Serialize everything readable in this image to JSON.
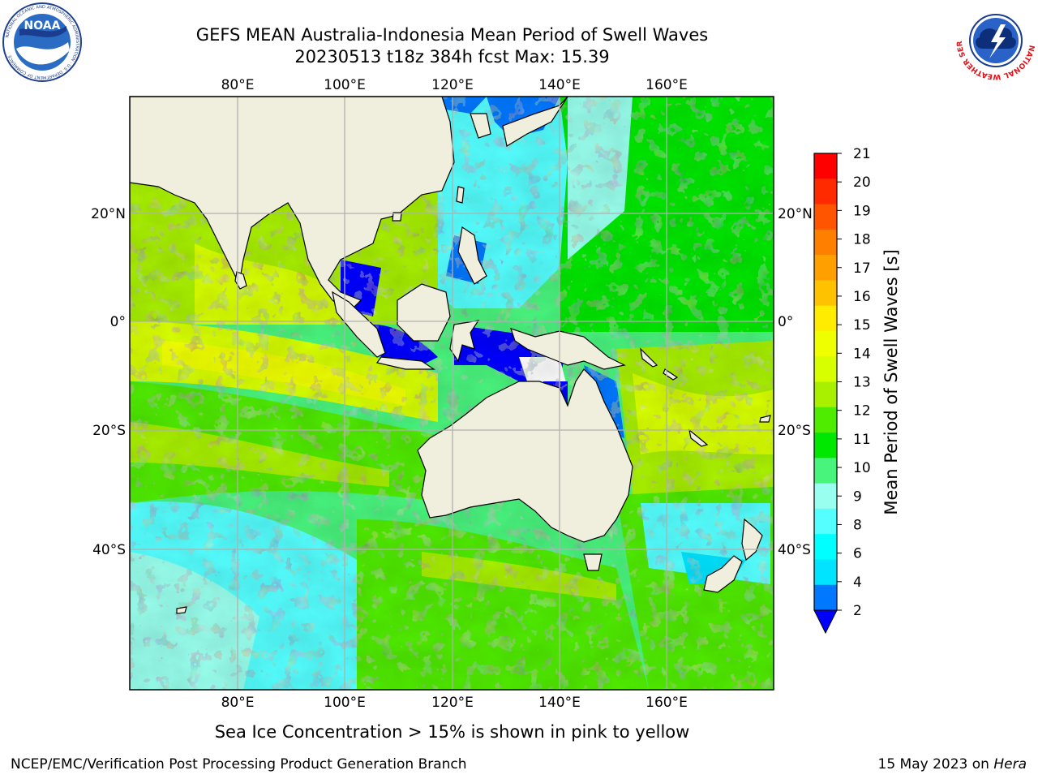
{
  "title": {
    "line1": "GEFS MEAN Australia-Indonesia Mean Period of Swell Waves",
    "line2": "20230513 t18z 384h fcst   Max: 15.39"
  },
  "map": {
    "lon_ticks_top": [
      "80°E",
      "100°E",
      "120°E",
      "140°E",
      "160°E"
    ],
    "lon_ticks_bottom": [
      "80°E",
      "100°E",
      "120°E",
      "140°E",
      "160°E"
    ],
    "lat_ticks_left": [
      "20°N",
      "0°",
      "20°S",
      "40°S"
    ],
    "lat_ticks_right": [
      "20°N",
      "0°",
      "20°S",
      "40°S"
    ],
    "colors": {
      "land": "#f0eedc",
      "grid": "#b0b0b0",
      "coast": "#000000"
    }
  },
  "colorbar": {
    "label": "Mean Period of Swell Waves [s]",
    "ticks": [
      "21",
      "20",
      "19",
      "18",
      "17",
      "16",
      "15",
      "14",
      "13",
      "12",
      "11",
      "10",
      "9",
      "8",
      "6",
      "4",
      "2"
    ],
    "colors_top_to_bottom": [
      "#ff0000",
      "#ff2a00",
      "#ff5500",
      "#ff7f00",
      "#ff9f00",
      "#ffc200",
      "#ffec00",
      "#f0ff00",
      "#d8ff00",
      "#a8f000",
      "#50ec00",
      "#00e800",
      "#49f47d",
      "#99ffee",
      "#55ffff",
      "#00ffff",
      "#00e4ff",
      "#0078ff"
    ],
    "under_color": "#0000ff"
  },
  "logos": {
    "noaa_text": "NOAA",
    "noaa_ring": "NATIONAL OCEANIC AND ATMOSPHERIC ADMINISTRATION · U.S. DEPARTMENT OF COMMERCE",
    "nws_ring": "NATIONAL WEATHER SERVICE"
  },
  "note": "Sea Ice Concentration > 15% is shown in pink to yellow",
  "footer": {
    "left": "NCEP/EMC/Verification Post Processing Product Generation Branch",
    "right_prefix": "15 May 2023 on ",
    "right_host": "Hera"
  }
}
